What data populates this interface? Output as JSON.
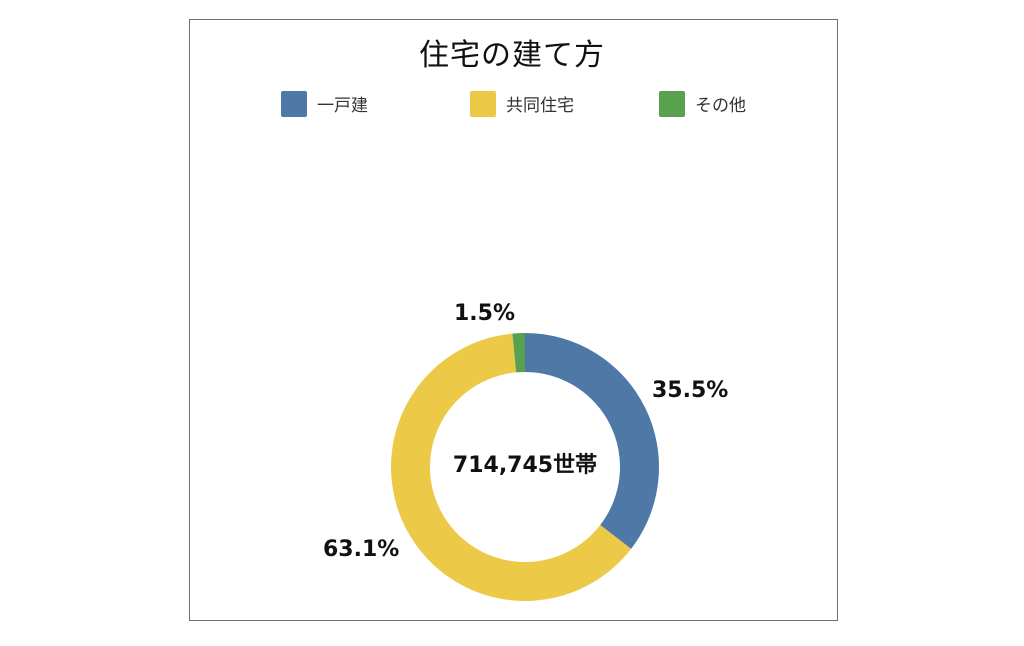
{
  "chart_data": {
    "type": "pie",
    "variant": "donut",
    "title": "住宅の建て方",
    "categories": [
      "一戸建",
      "共同住宅",
      "その他"
    ],
    "values": [
      35.5,
      63.1,
      1.5
    ],
    "value_labels": [
      "35.5%",
      "63.1%",
      "1.5%"
    ],
    "unit": "%",
    "colors": [
      "#4E79A7",
      "#EDC948",
      "#59A14F"
    ],
    "center_text": "714,745世帯",
    "total": 714745,
    "total_unit": "世帯",
    "start_angle_deg": 0,
    "direction": "clockwise",
    "legend_position": "top"
  },
  "chart": {
    "title": "住宅の建て方",
    "center_label": "714,745世帯",
    "legend": [
      {
        "label": "一戸建",
        "color": "#4E79A7"
      },
      {
        "label": "共同住宅",
        "color": "#EDC948"
      },
      {
        "label": "その他",
        "color": "#59A14F"
      }
    ],
    "slices": [
      {
        "label": "一戸建",
        "value": 35.5,
        "text": "35.5%",
        "color": "#4E79A7"
      },
      {
        "label": "共同住宅",
        "value": 63.1,
        "text": "63.1%",
        "color": "#EDC948"
      },
      {
        "label": "その他",
        "value": 1.5,
        "text": "1.5%",
        "color": "#59A14F"
      }
    ]
  }
}
